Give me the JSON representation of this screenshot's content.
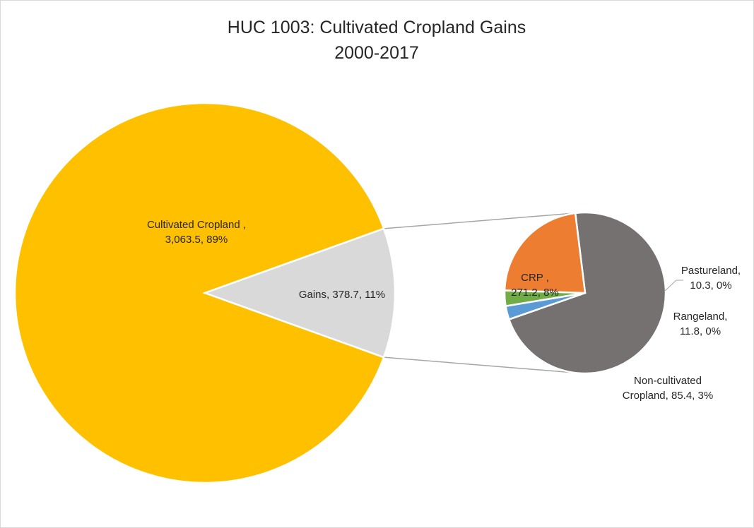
{
  "chart_data": {
    "type": "pie",
    "subtype": "pie-of-pie",
    "title": [
      "HUC 1003: Cultivated Cropland Gains",
      "2000-2017"
    ],
    "main_pie": {
      "slices": [
        {
          "name": "Cultivated Cropland ",
          "value": 3063.5,
          "percent": "89%",
          "value_label": "3,063.5",
          "color": "#FFC000"
        },
        {
          "name": "Gains",
          "value": 378.7,
          "percent": "11%",
          "value_label": "378.7",
          "color": "#D9D9D9"
        }
      ]
    },
    "secondary_pie": {
      "breakdown_of": "Gains",
      "slices": [
        {
          "name": "CRP ",
          "value": 271.2,
          "percent": "8%",
          "value_label": "271.2",
          "color": "#767171"
        },
        {
          "name": "Pastureland",
          "value": 10.3,
          "percent": "0%",
          "value_label": "10.3",
          "color": "#5B9BD5"
        },
        {
          "name": "Rangeland",
          "value": 11.8,
          "percent": "0%",
          "value_label": "11.8",
          "color": "#70AD47"
        },
        {
          "name": "Non-cultivated Cropland",
          "value": 85.4,
          "percent": "3%",
          "value_label": "85.4",
          "color": "#ED7D31"
        }
      ]
    },
    "legend": "none",
    "labels": [
      {
        "slice": "main.0",
        "lines": [
          "Cultivated Cropland ,",
          "3,063.5, 89%"
        ]
      },
      {
        "slice": "main.1",
        "lines": [
          "Gains, 378.7, 11%"
        ]
      },
      {
        "slice": "secondary.0",
        "lines": [
          "CRP ,",
          "271.2, 8%"
        ]
      },
      {
        "slice": "secondary.1",
        "lines": [
          "Pastureland,",
          "10.3, 0%"
        ]
      },
      {
        "slice": "secondary.2",
        "lines": [
          "Rangeland,",
          "11.8, 0%"
        ]
      },
      {
        "slice": "secondary.3",
        "lines": [
          "Non-cultivated",
          "Cropland, 85.4, 3%"
        ]
      }
    ]
  }
}
